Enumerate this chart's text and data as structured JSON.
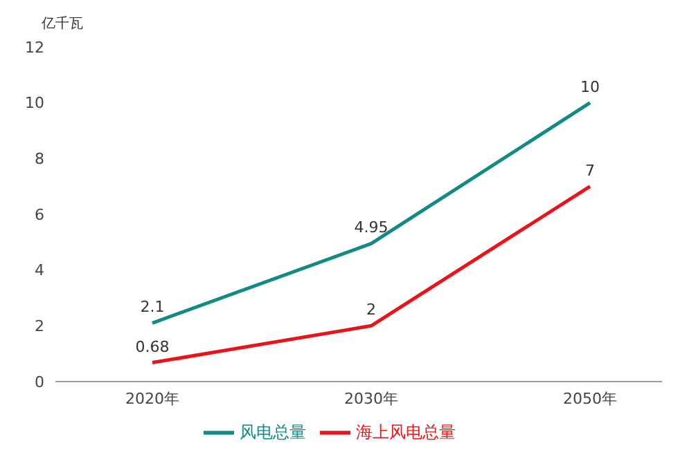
{
  "chart_data": {
    "type": "line",
    "ylabel": "亿千瓦",
    "categories": [
      "2020年",
      "2030年",
      "2050年"
    ],
    "series": [
      {
        "name": "风电总量",
        "color": "#138a84",
        "values": [
          2.1,
          4.95,
          10
        ]
      },
      {
        "name": "海上风电总量",
        "color": "#e8141c",
        "values": [
          0.68,
          2,
          7
        ]
      }
    ],
    "ylim": [
      0,
      12
    ],
    "yticks": [
      0,
      2,
      4,
      6,
      8,
      10,
      12
    ],
    "legend": "bottom",
    "marker": "none",
    "line_style": "solid",
    "data_labels": true
  }
}
